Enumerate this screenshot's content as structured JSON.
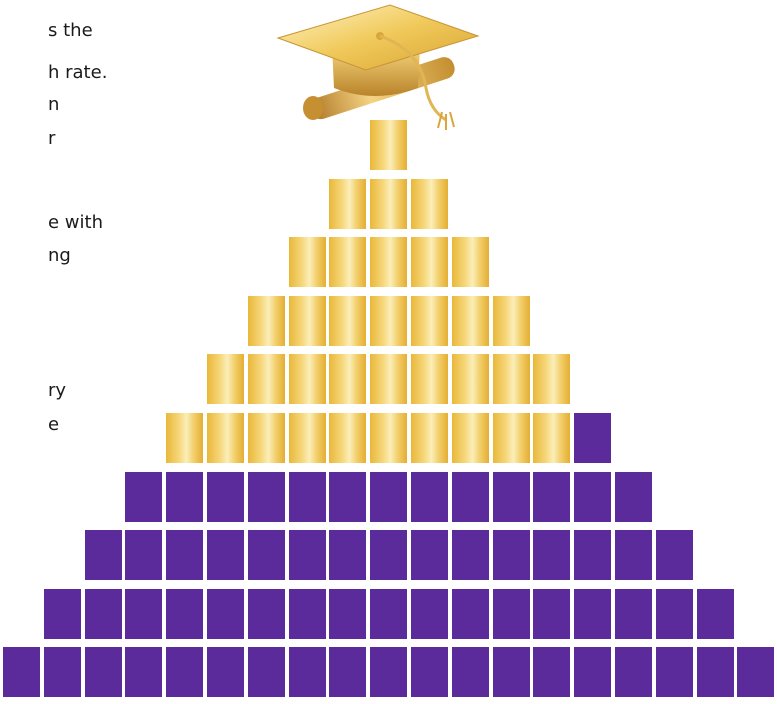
{
  "text_fragments": [
    "s the",
    "h rate.",
    "n",
    "r",
    "e with",
    "ng",
    "ry",
    "e"
  ],
  "pyramid": {
    "rows": [
      {
        "total": 1,
        "gold": 1
      },
      {
        "total": 3,
        "gold": 3
      },
      {
        "total": 5,
        "gold": 5
      },
      {
        "total": 7,
        "gold": 7
      },
      {
        "total": 9,
        "gold": 9
      },
      {
        "total": 11,
        "gold": 10
      },
      {
        "total": 13,
        "gold": 0
      },
      {
        "total": 15,
        "gold": 0
      },
      {
        "total": 17,
        "gold": 0
      },
      {
        "total": 19,
        "gold": 0
      }
    ],
    "colors": {
      "gold": "#f2c95c",
      "purple": "#5b2a9b"
    }
  },
  "icons": {
    "top": "graduation-cap-diploma-icon"
  }
}
